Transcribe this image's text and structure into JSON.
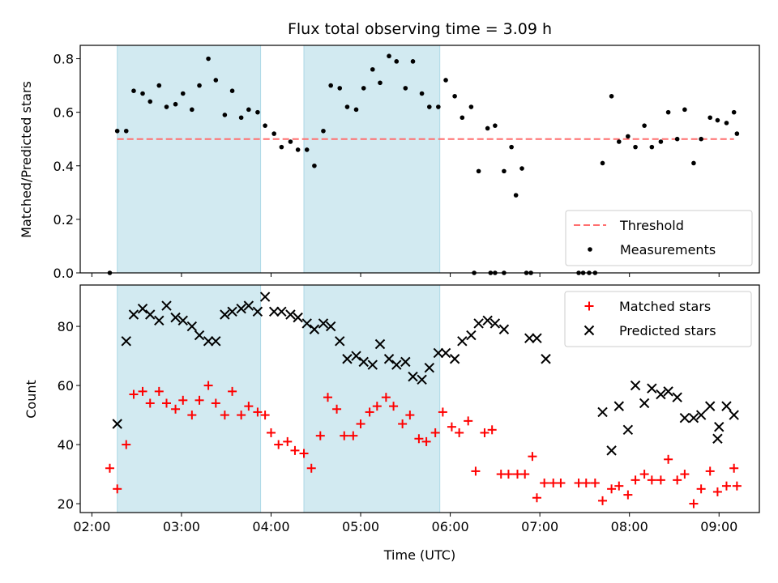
{
  "figure": {
    "title": "Flux total observing time = 3.09 h",
    "xlabel": "Time (UTC)"
  },
  "colors": {
    "shade": "#add8e6",
    "threshold": "#ff6f6f",
    "measurements": "#000000",
    "matched": "#ff0000",
    "predicted": "#000000"
  },
  "chart_data": [
    {
      "type": "scatter",
      "ylabel": "Matched/Predicted stars",
      "xlim_hours": [
        1.87,
        9.45
      ],
      "ylim": [
        0,
        0.85
      ],
      "x_ticks": [
        "02:00",
        "03:00",
        "04:00",
        "05:00",
        "06:00",
        "07:00",
        "08:00",
        "09:00"
      ],
      "y_ticks": [
        "0.0",
        "0.2",
        "0.4",
        "0.6",
        "0.8"
      ],
      "y_tick_values": [
        0,
        0.2,
        0.4,
        0.6,
        0.8
      ],
      "shaded_intervals": [
        [
          "02:17",
          "03:53"
        ],
        [
          "04:22",
          "05:53"
        ]
      ],
      "threshold": {
        "name": "Threshold",
        "value": 0.5,
        "x_range": [
          "02:17",
          "09:10"
        ]
      },
      "legend": {
        "placement": "lower right",
        "entries": [
          "Threshold",
          "Measurements"
        ]
      },
      "series": [
        {
          "name": "Measurements",
          "marker": "dot",
          "points": [
            [
              "02:12",
              0.0
            ],
            [
              "02:17",
              0.53
            ],
            [
              "02:23",
              0.53
            ],
            [
              "02:28",
              0.68
            ],
            [
              "02:34",
              0.67
            ],
            [
              "02:39",
              0.64
            ],
            [
              "02:45",
              0.7
            ],
            [
              "02:50",
              0.62
            ],
            [
              "02:56",
              0.63
            ],
            [
              "03:01",
              0.67
            ],
            [
              "03:07",
              0.61
            ],
            [
              "03:12",
              0.7
            ],
            [
              "03:18",
              0.8
            ],
            [
              "03:23",
              0.72
            ],
            [
              "03:29",
              0.59
            ],
            [
              "03:34",
              0.68
            ],
            [
              "03:40",
              0.58
            ],
            [
              "03:45",
              0.61
            ],
            [
              "03:51",
              0.6
            ],
            [
              "03:56",
              0.55
            ],
            [
              "04:02",
              0.52
            ],
            [
              "04:07",
              0.47
            ],
            [
              "04:13",
              0.49
            ],
            [
              "04:18",
              0.46
            ],
            [
              "04:24",
              0.46
            ],
            [
              "04:29",
              0.4
            ],
            [
              "04:35",
              0.53
            ],
            [
              "04:40",
              0.7
            ],
            [
              "04:46",
              0.69
            ],
            [
              "04:51",
              0.62
            ],
            [
              "04:57",
              0.61
            ],
            [
              "05:02",
              0.69
            ],
            [
              "05:08",
              0.76
            ],
            [
              "05:13",
              0.71
            ],
            [
              "05:19",
              0.81
            ],
            [
              "05:24",
              0.79
            ],
            [
              "05:30",
              0.69
            ],
            [
              "05:35",
              0.79
            ],
            [
              "05:41",
              0.67
            ],
            [
              "05:46",
              0.62
            ],
            [
              "05:52",
              0.62
            ],
            [
              "05:57",
              0.72
            ],
            [
              "06:03",
              0.66
            ],
            [
              "06:08",
              0.58
            ],
            [
              "06:14",
              0.62
            ],
            [
              "06:19",
              0.38
            ],
            [
              "06:25",
              0.54
            ],
            [
              "06:30",
              0.55
            ],
            [
              "06:36",
              0.38
            ],
            [
              "06:16",
              0.0
            ],
            [
              "06:27",
              0.0
            ],
            [
              "06:30",
              0.0
            ],
            [
              "06:36",
              0.0
            ],
            [
              "06:41",
              0.47
            ],
            [
              "06:44",
              0.29
            ],
            [
              "06:48",
              0.39
            ],
            [
              "06:51",
              0.0
            ],
            [
              "06:54",
              0.0
            ],
            [
              "07:26",
              0.0
            ],
            [
              "07:29",
              0.0
            ],
            [
              "07:33",
              0.0
            ],
            [
              "07:37",
              0.0
            ],
            [
              "07:42",
              0.41
            ],
            [
              "07:48",
              0.66
            ],
            [
              "07:53",
              0.49
            ],
            [
              "07:59",
              0.51
            ],
            [
              "08:04",
              0.47
            ],
            [
              "08:10",
              0.55
            ],
            [
              "08:15",
              0.47
            ],
            [
              "08:21",
              0.49
            ],
            [
              "08:26",
              0.6
            ],
            [
              "08:32",
              0.5
            ],
            [
              "08:37",
              0.61
            ],
            [
              "08:43",
              0.41
            ],
            [
              "08:48",
              0.5
            ],
            [
              "08:54",
              0.58
            ],
            [
              "08:59",
              0.57
            ],
            [
              "09:05",
              0.56
            ],
            [
              "09:10",
              0.6
            ],
            [
              "09:12",
              0.52
            ]
          ]
        }
      ]
    },
    {
      "type": "scatter",
      "ylabel": "Count",
      "xlim_hours": [
        1.87,
        9.45
      ],
      "ylim": [
        17,
        94
      ],
      "x_ticks": [
        "02:00",
        "03:00",
        "04:00",
        "05:00",
        "06:00",
        "07:00",
        "08:00",
        "09:00"
      ],
      "y_ticks": [
        "20",
        "40",
        "60",
        "80"
      ],
      "y_tick_values": [
        20,
        40,
        60,
        80
      ],
      "shaded_intervals": [
        [
          "02:17",
          "03:53"
        ],
        [
          "04:22",
          "05:53"
        ]
      ],
      "legend": {
        "placement": "upper right",
        "entries": [
          "Matched stars",
          "Predicted stars"
        ]
      },
      "series": [
        {
          "name": "Matched stars",
          "marker": "plus",
          "points": [
            [
              "02:12",
              32
            ],
            [
              "02:17",
              25
            ],
            [
              "02:23",
              40
            ],
            [
              "02:28",
              57
            ],
            [
              "02:34",
              58
            ],
            [
              "02:39",
              54
            ],
            [
              "02:45",
              58
            ],
            [
              "02:50",
              54
            ],
            [
              "02:56",
              52
            ],
            [
              "03:01",
              55
            ],
            [
              "03:07",
              50
            ],
            [
              "03:12",
              55
            ],
            [
              "03:18",
              60
            ],
            [
              "03:23",
              54
            ],
            [
              "03:29",
              50
            ],
            [
              "03:34",
              58
            ],
            [
              "03:40",
              50
            ],
            [
              "03:45",
              53
            ],
            [
              "03:51",
              51
            ],
            [
              "03:56",
              50
            ],
            [
              "04:00",
              44
            ],
            [
              "04:05",
              40
            ],
            [
              "04:11",
              41
            ],
            [
              "04:16",
              38
            ],
            [
              "04:22",
              37
            ],
            [
              "04:27",
              32
            ],
            [
              "04:33",
              43
            ],
            [
              "04:38",
              56
            ],
            [
              "04:44",
              52
            ],
            [
              "04:49",
              43
            ],
            [
              "04:55",
              43
            ],
            [
              "05:00",
              47
            ],
            [
              "05:06",
              51
            ],
            [
              "05:11",
              53
            ],
            [
              "05:17",
              56
            ],
            [
              "05:22",
              53
            ],
            [
              "05:28",
              47
            ],
            [
              "05:33",
              50
            ],
            [
              "05:39",
              42
            ],
            [
              "05:44",
              41
            ],
            [
              "05:50",
              44
            ],
            [
              "05:55",
              51
            ],
            [
              "06:01",
              46
            ],
            [
              "06:06",
              44
            ],
            [
              "06:12",
              48
            ],
            [
              "06:17",
              31
            ],
            [
              "06:23",
              44
            ],
            [
              "06:28",
              45
            ],
            [
              "06:34",
              30
            ],
            [
              "06:39",
              30
            ],
            [
              "06:45",
              30
            ],
            [
              "06:50",
              30
            ],
            [
              "06:55",
              36
            ],
            [
              "06:58",
              22
            ],
            [
              "07:03",
              27
            ],
            [
              "07:09",
              27
            ],
            [
              "07:14",
              27
            ],
            [
              "07:26",
              27
            ],
            [
              "07:31",
              27
            ],
            [
              "07:37",
              27
            ],
            [
              "07:42",
              21
            ],
            [
              "07:48",
              25
            ],
            [
              "07:53",
              26
            ],
            [
              "07:59",
              23
            ],
            [
              "08:04",
              28
            ],
            [
              "08:10",
              30
            ],
            [
              "08:15",
              28
            ],
            [
              "08:21",
              28
            ],
            [
              "08:26",
              35
            ],
            [
              "08:32",
              28
            ],
            [
              "08:37",
              30
            ],
            [
              "08:43",
              20
            ],
            [
              "08:48",
              25
            ],
            [
              "08:54",
              31
            ],
            [
              "08:59",
              24
            ],
            [
              "09:05",
              26
            ],
            [
              "09:10",
              32
            ],
            [
              "09:12",
              26
            ]
          ]
        },
        {
          "name": "Predicted stars",
          "marker": "x",
          "points": [
            [
              "02:17",
              47
            ],
            [
              "02:23",
              75
            ],
            [
              "02:28",
              84
            ],
            [
              "02:34",
              86
            ],
            [
              "02:39",
              84
            ],
            [
              "02:45",
              82
            ],
            [
              "02:50",
              87
            ],
            [
              "02:56",
              83
            ],
            [
              "03:01",
              82
            ],
            [
              "03:07",
              80
            ],
            [
              "03:12",
              77
            ],
            [
              "03:18",
              75
            ],
            [
              "03:23",
              75
            ],
            [
              "03:29",
              84
            ],
            [
              "03:34",
              85
            ],
            [
              "03:40",
              86
            ],
            [
              "03:45",
              87
            ],
            [
              "03:51",
              85
            ],
            [
              "03:56",
              90
            ],
            [
              "04:02",
              85
            ],
            [
              "04:07",
              85
            ],
            [
              "04:13",
              84
            ],
            [
              "04:18",
              83
            ],
            [
              "04:24",
              81
            ],
            [
              "04:29",
              79
            ],
            [
              "04:35",
              81
            ],
            [
              "04:40",
              80
            ],
            [
              "04:46",
              75
            ],
            [
              "04:51",
              69
            ],
            [
              "04:57",
              70
            ],
            [
              "05:02",
              68
            ],
            [
              "05:08",
              67
            ],
            [
              "05:13",
              74
            ],
            [
              "05:19",
              69
            ],
            [
              "05:24",
              67
            ],
            [
              "05:30",
              68
            ],
            [
              "05:35",
              63
            ],
            [
              "05:41",
              62
            ],
            [
              "05:46",
              66
            ],
            [
              "05:52",
              71
            ],
            [
              "05:57",
              71
            ],
            [
              "06:03",
              69
            ],
            [
              "06:08",
              75
            ],
            [
              "06:14",
              77
            ],
            [
              "06:19",
              81
            ],
            [
              "06:25",
              82
            ],
            [
              "06:30",
              81
            ],
            [
              "06:36",
              79
            ],
            [
              "06:53",
              76
            ],
            [
              "06:58",
              76
            ],
            [
              "07:04",
              69
            ],
            [
              "07:42",
              51
            ],
            [
              "07:48",
              38
            ],
            [
              "07:53",
              53
            ],
            [
              "07:59",
              45
            ],
            [
              "08:04",
              60
            ],
            [
              "08:10",
              54
            ],
            [
              "08:15",
              59
            ],
            [
              "08:21",
              57
            ],
            [
              "08:26",
              58
            ],
            [
              "08:32",
              56
            ],
            [
              "08:37",
              49
            ],
            [
              "08:43",
              49
            ],
            [
              "08:48",
              50
            ],
            [
              "08:54",
              53
            ],
            [
              "08:59",
              42
            ],
            [
              "09:00",
              46
            ],
            [
              "09:05",
              53
            ],
            [
              "09:10",
              50
            ]
          ]
        }
      ]
    }
  ]
}
